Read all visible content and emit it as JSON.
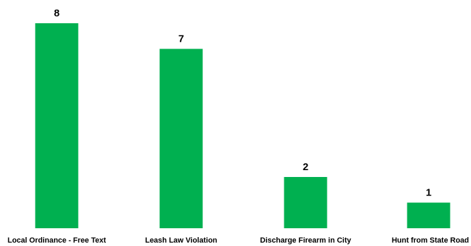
{
  "chart_data": {
    "type": "bar",
    "categories": [
      "Local Ordinance - Free Text",
      "Leash Law Violation",
      "Discharge Firearm in City",
      "Hunt from State Road"
    ],
    "values": [
      8,
      7,
      2,
      1
    ],
    "data_labels": [
      "8",
      "7",
      "2",
      "1"
    ],
    "ylim": [
      0,
      8
    ],
    "grid": false,
    "bar_color": "#00b050"
  }
}
